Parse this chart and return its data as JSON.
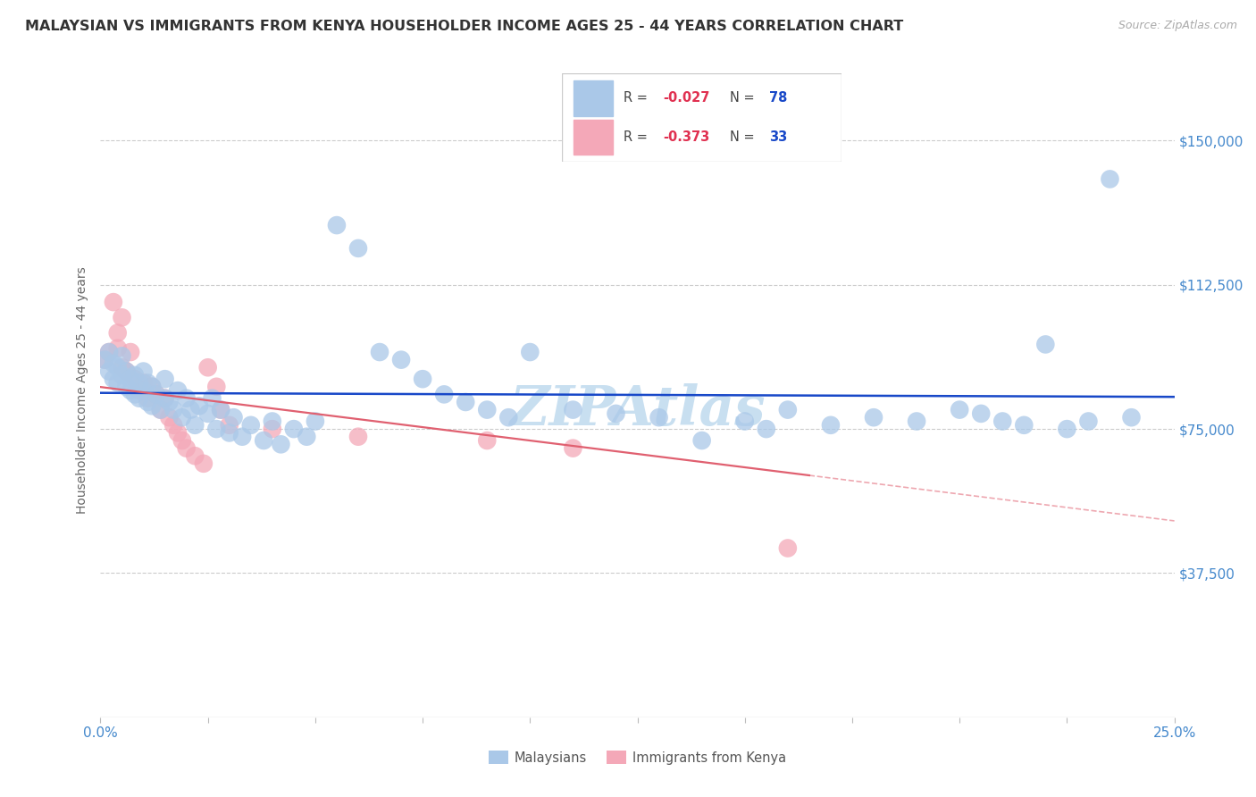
{
  "title": "MALAYSIAN VS IMMIGRANTS FROM KENYA HOUSEHOLDER INCOME AGES 25 - 44 YEARS CORRELATION CHART",
  "source": "Source: ZipAtlas.com",
  "ylabel": "Householder Income Ages 25 - 44 years",
  "xlim": [
    0.0,
    0.25
  ],
  "ylim": [
    0,
    170000
  ],
  "xtick_vals": [
    0.0,
    0.025,
    0.05,
    0.075,
    0.1,
    0.125,
    0.15,
    0.175,
    0.2,
    0.225,
    0.25
  ],
  "ytick_vals": [
    0,
    37500,
    75000,
    112500,
    150000
  ],
  "ytick_labels_right": [
    "",
    "$37,500",
    "$75,000",
    "$112,500",
    "$150,000"
  ],
  "r_malaysian": -0.027,
  "n_malaysian": 78,
  "r_kenya": -0.373,
  "n_kenya": 33,
  "malaysian_color": "#aac8e8",
  "kenya_color": "#f4a8b8",
  "malaysian_line_color": "#1848c8",
  "kenya_line_color": "#e06070",
  "grid_color": "#cccccc",
  "axis_label_color": "#4488cc",
  "watermark_text": "ZIPAtlas",
  "watermark_color": "#c8dff0",
  "legend_label_1": "Malaysians",
  "legend_label_2": "Immigrants from Kenya",
  "mal_x": [
    0.001,
    0.002,
    0.002,
    0.003,
    0.003,
    0.004,
    0.004,
    0.005,
    0.005,
    0.006,
    0.006,
    0.007,
    0.007,
    0.008,
    0.008,
    0.009,
    0.009,
    0.01,
    0.01,
    0.011,
    0.011,
    0.012,
    0.012,
    0.013,
    0.014,
    0.015,
    0.015,
    0.016,
    0.017,
    0.018,
    0.019,
    0.02,
    0.021,
    0.022,
    0.023,
    0.025,
    0.026,
    0.027,
    0.028,
    0.03,
    0.031,
    0.033,
    0.035,
    0.038,
    0.04,
    0.042,
    0.045,
    0.048,
    0.05,
    0.055,
    0.06,
    0.065,
    0.07,
    0.075,
    0.08,
    0.085,
    0.09,
    0.095,
    0.1,
    0.11,
    0.12,
    0.13,
    0.14,
    0.15,
    0.155,
    0.16,
    0.17,
    0.18,
    0.19,
    0.2,
    0.205,
    0.21,
    0.215,
    0.22,
    0.225,
    0.23,
    0.235,
    0.24
  ],
  "mal_y": [
    93000,
    90000,
    95000,
    88000,
    92000,
    87000,
    91000,
    89000,
    94000,
    86000,
    90000,
    85000,
    88000,
    84000,
    89000,
    83000,
    87000,
    85000,
    90000,
    82000,
    87000,
    81000,
    86000,
    84000,
    80000,
    83000,
    88000,
    82000,
    80000,
    85000,
    78000,
    83000,
    80000,
    76000,
    81000,
    79000,
    83000,
    75000,
    80000,
    74000,
    78000,
    73000,
    76000,
    72000,
    77000,
    71000,
    75000,
    73000,
    77000,
    128000,
    122000,
    95000,
    93000,
    88000,
    84000,
    82000,
    80000,
    78000,
    95000,
    80000,
    79000,
    78000,
    72000,
    77000,
    75000,
    80000,
    76000,
    78000,
    77000,
    80000,
    79000,
    77000,
    76000,
    97000,
    75000,
    77000,
    140000,
    78000
  ],
  "ken_x": [
    0.001,
    0.002,
    0.003,
    0.004,
    0.004,
    0.005,
    0.005,
    0.006,
    0.007,
    0.008,
    0.009,
    0.01,
    0.011,
    0.012,
    0.013,
    0.014,
    0.015,
    0.016,
    0.017,
    0.018,
    0.019,
    0.02,
    0.022,
    0.024,
    0.025,
    0.027,
    0.028,
    0.03,
    0.04,
    0.06,
    0.09,
    0.11,
    0.16
  ],
  "ken_y": [
    93000,
    95000,
    108000,
    100000,
    96000,
    104000,
    91000,
    90000,
    95000,
    88000,
    85000,
    87000,
    83000,
    86000,
    84000,
    80000,
    83000,
    78000,
    76000,
    74000,
    72000,
    70000,
    68000,
    66000,
    91000,
    86000,
    80000,
    76000,
    75000,
    73000,
    72000,
    70000,
    44000
  ]
}
